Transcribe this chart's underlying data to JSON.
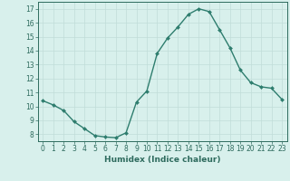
{
  "x": [
    0,
    1,
    2,
    3,
    4,
    5,
    6,
    7,
    8,
    9,
    10,
    11,
    12,
    13,
    14,
    15,
    16,
    17,
    18,
    19,
    20,
    21,
    22,
    23
  ],
  "y": [
    10.4,
    10.1,
    9.7,
    8.9,
    8.4,
    7.9,
    7.8,
    7.75,
    8.1,
    10.3,
    11.1,
    13.8,
    14.9,
    15.7,
    16.6,
    17.0,
    16.8,
    15.5,
    14.2,
    12.6,
    11.7,
    11.4,
    11.3,
    10.5
  ],
  "line_color": "#2e7d6e",
  "marker": "D",
  "marker_size": 2,
  "line_width": 1.0,
  "bg_color": "#d8f0ec",
  "grid_color": "#c0ddd8",
  "xlabel": "Humidex (Indice chaleur)",
  "xlim": [
    -0.5,
    23.5
  ],
  "ylim": [
    7.5,
    17.5
  ],
  "yticks": [
    8,
    9,
    10,
    11,
    12,
    13,
    14,
    15,
    16,
    17
  ],
  "xticks": [
    0,
    1,
    2,
    3,
    4,
    5,
    6,
    7,
    8,
    9,
    10,
    11,
    12,
    13,
    14,
    15,
    16,
    17,
    18,
    19,
    20,
    21,
    22,
    23
  ],
  "tick_color": "#2e6b5e",
  "axis_color": "#2e6b5e",
  "label_fontsize": 6.5,
  "tick_fontsize": 5.5
}
